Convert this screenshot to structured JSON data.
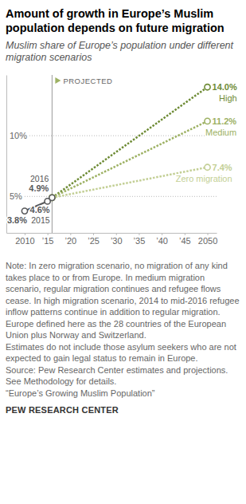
{
  "chart_data": {
    "type": "line",
    "title": "Amount of growth in Europe’s Muslim population depends on future migration",
    "subtitle": "Muslim share of Europe’s population under different migration scenarios",
    "x": [
      2010,
      2015,
      2016,
      2050
    ],
    "xlim": [
      2006,
      2052
    ],
    "xticks": [
      2010,
      {
        "value": 2015,
        "label": "’15"
      },
      {
        "value": 2020,
        "label": "’20"
      },
      {
        "value": 2025,
        "label": "’25"
      },
      {
        "value": 2030,
        "label": "’30"
      },
      {
        "value": 2035,
        "label": "’35"
      },
      {
        "value": 2040,
        "label": "’40"
      },
      {
        "value": 2045,
        "label": "’45"
      },
      2050
    ],
    "ylim": [
      2,
      15
    ],
    "yticks": [
      {
        "value": 5,
        "label": "5%"
      },
      {
        "value": 10,
        "label": "10%"
      }
    ],
    "grid": true,
    "data_labels": true,
    "series": [
      {
        "name": "High",
        "color": "#6e8b35",
        "values": [
          null,
          null,
          4.9,
          14.0
        ],
        "value_labels": [
          null,
          null,
          null,
          "14.0%"
        ],
        "line_style": "dotted",
        "marker": "circle"
      },
      {
        "name": "Medium",
        "color": "#9db163",
        "values": [
          null,
          null,
          4.9,
          11.2
        ],
        "value_labels": [
          null,
          null,
          null,
          "11.2%"
        ],
        "line_style": "dotted",
        "marker": "circle"
      },
      {
        "name": "Zero migration",
        "color": "#c3cf95",
        "values": [
          null,
          null,
          4.9,
          7.4
        ],
        "value_labels": [
          null,
          null,
          null,
          "7.4%"
        ],
        "line_style": "dotted",
        "marker": "circle"
      },
      {
        "color": "#58595b",
        "values": [
          3.8,
          4.6,
          4.9,
          null
        ],
        "value_labels": [
          "3.8%",
          "4.6%",
          "4.9%",
          null
        ],
        "line_style": "solid",
        "marker": "circle"
      }
    ],
    "annotations": [
      {
        "text": "2015",
        "x": 2015,
        "y": 4.6
      },
      {
        "text": "2016",
        "x": 2016,
        "y": 4.9
      },
      {
        "text": "PROJECTED",
        "x": 2016
      }
    ],
    "notes": [
      "Note: In zero migration scenario, no migration of any kind takes place to or from Europe. In medium migration scenario, regular migration continues and refugee flows cease. In high migration scenario, 2014 to mid-2016 refugee inflow patterns continue in addition to regular migration.",
      "Europe defined here as the 28 countries of the European Union plus Norway and Switzerland.",
      "Estimates do not include those asylum seekers who are not expected to gain legal status to remain in Europe.",
      "Source: Pew Research Center estimates and projections.",
      "See Methodology for details.",
      "“Europe’s Growing Muslim Population”"
    ],
    "credit": "PEW RESEARCH CENTER"
  }
}
